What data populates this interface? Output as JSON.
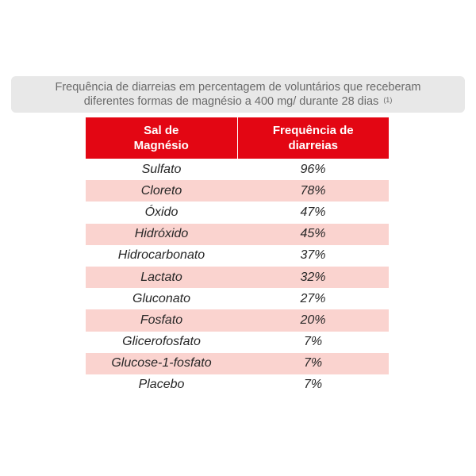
{
  "caption": {
    "line1": "Frequência de diarreias em percentagem de voluntários que receberam",
    "line2": "diferentes formas de magnésio a 400 mg/ durante 28 dias",
    "footnote": "(1)"
  },
  "table": {
    "headers": [
      "Sal de\nMagnésio",
      "Frequência de\ndiarreias"
    ],
    "rows": [
      [
        "Sulfato",
        "96%"
      ],
      [
        "Cloreto",
        "78%"
      ],
      [
        "Óxido",
        "47%"
      ],
      [
        "Hidróxido",
        "45%"
      ],
      [
        "Hidrocarbonato",
        "37%"
      ],
      [
        "Lactato",
        "32%"
      ],
      [
        "Gluconato",
        "27%"
      ],
      [
        "Fosfato",
        "20%"
      ],
      [
        "Glicerofosfato",
        "7%"
      ],
      [
        "Glucose-1-fosfato",
        "7%"
      ],
      [
        "Placebo",
        "7%"
      ]
    ]
  },
  "colors": {
    "header_bg": "#e30613",
    "alt_row_bg": "#fad3cf",
    "caption_bg": "#e8e8e8"
  }
}
